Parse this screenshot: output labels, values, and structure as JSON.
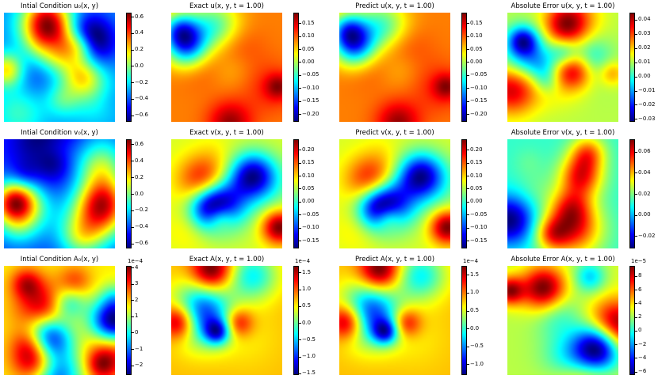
{
  "chart_data": [
    {
      "type": "heatmap",
      "title": "Intial Condition $u_0(x,y)$",
      "colormap": "jet",
      "seed": 1,
      "blobs": 16,
      "ticks": [
        "0.6",
        "0.4",
        "0.2",
        "0.0",
        "−0.2",
        "−0.4",
        "−0.6"
      ],
      "tick_values": [
        0.6,
        0.4,
        0.2,
        0.0,
        -0.2,
        -0.4,
        -0.6
      ],
      "range": [
        -0.68,
        0.65
      ],
      "offset": ""
    },
    {
      "type": "heatmap",
      "title": "Exact $u(x,y,t=1.00)$",
      "colormap": "jet",
      "seed": 2,
      "blobs": 9,
      "ticks": [
        "0.15",
        "0.10",
        "0.05",
        "0.00",
        "−0.05",
        "−0.10",
        "−0.15",
        "−0.20"
      ],
      "tick_values": [
        0.15,
        0.1,
        0.05,
        0.0,
        -0.05,
        -0.1,
        -0.15,
        -0.2
      ],
      "range": [
        -0.23,
        0.19
      ],
      "offset": ""
    },
    {
      "type": "heatmap",
      "title": "Predict $u(x,y,t=1.00)$",
      "colormap": "jet",
      "seed": 2,
      "blobs": 9,
      "ticks": [
        "0.15",
        "0.10",
        "0.05",
        "0.00",
        "−0.05",
        "−0.10",
        "−0.15",
        "−0.20"
      ],
      "tick_values": [
        0.15,
        0.1,
        0.05,
        0.0,
        -0.05,
        -0.1,
        -0.15,
        -0.2
      ],
      "range": [
        -0.23,
        0.19
      ],
      "offset": ""
    },
    {
      "type": "heatmap",
      "title": "Absolute Error $u(x,y,t=1.00)$",
      "colormap": "jet",
      "seed": 4,
      "blobs": 14,
      "ticks": [
        "0.04",
        "0.03",
        "0.02",
        "0.01",
        "0.00",
        "−0.01",
        "−0.02",
        "−0.03"
      ],
      "tick_values": [
        0.04,
        0.03,
        0.02,
        0.01,
        0.0,
        -0.01,
        -0.02,
        -0.03
      ],
      "range": [
        -0.032,
        0.045
      ],
      "offset": ""
    },
    {
      "type": "heatmap",
      "title": "Intial Condition $v_0(x,y)$",
      "colormap": "jet",
      "seed": 5,
      "blobs": 16,
      "ticks": [
        "0.6",
        "0.4",
        "0.2",
        "0.0",
        "−0.2",
        "−0.4",
        "−0.6"
      ],
      "tick_values": [
        0.6,
        0.4,
        0.2,
        0.0,
        -0.2,
        -0.4,
        -0.6
      ],
      "range": [
        -0.66,
        0.66
      ],
      "offset": ""
    },
    {
      "type": "heatmap",
      "title": "Exact $v(x,y,t=1.00)$",
      "colormap": "jet",
      "seed": 6,
      "blobs": 9,
      "ticks": [
        "0.20",
        "0.15",
        "0.10",
        "0.05",
        "0.00",
        "−0.05",
        "−0.10",
        "−0.15"
      ],
      "tick_values": [
        0.2,
        0.15,
        0.1,
        0.05,
        0.0,
        -0.05,
        -0.1,
        -0.15
      ],
      "range": [
        -0.18,
        0.24
      ],
      "offset": ""
    },
    {
      "type": "heatmap",
      "title": "Predict $v(x,y,t=1.00)$",
      "colormap": "jet",
      "seed": 6,
      "blobs": 9,
      "ticks": [
        "0.20",
        "0.15",
        "0.10",
        "0.05",
        "0.00",
        "−0.05",
        "−0.10",
        "−0.15"
      ],
      "tick_values": [
        0.2,
        0.15,
        0.1,
        0.05,
        0.0,
        -0.05,
        -0.1,
        -0.15
      ],
      "range": [
        -0.18,
        0.24
      ],
      "offset": ""
    },
    {
      "type": "heatmap",
      "title": "Absolute Error $v(x,y,t=1.00)$",
      "colormap": "jet",
      "seed": 8,
      "blobs": 10,
      "ticks": [
        "0.06",
        "0.04",
        "0.02",
        "0.00",
        "−0.02"
      ],
      "tick_values": [
        0.06,
        0.04,
        0.02,
        0.0,
        -0.02
      ],
      "range": [
        -0.032,
        0.072
      ],
      "offset": ""
    },
    {
      "type": "heatmap",
      "title": "Intial Condition $A_0(x,y)$",
      "colormap": "jet",
      "seed": 9,
      "blobs": 12,
      "ticks": [
        "4",
        "3",
        "2",
        "1",
        "0",
        "−1",
        "−2"
      ],
      "tick_values": [
        4,
        3,
        2,
        1,
        0,
        -1,
        -2
      ],
      "range": [
        -2.6,
        4.1
      ],
      "offset": "1e−4"
    },
    {
      "type": "heatmap",
      "title": "Exact $A(x,y,t=1.00)$",
      "colormap": "jet",
      "seed": 10,
      "blobs": 7,
      "ticks": [
        "1.5",
        "1.0",
        "0.5",
        "0.0",
        "−0.5",
        "−1.0",
        "−1.5"
      ],
      "tick_values": [
        1.5,
        1.0,
        0.5,
        0.0,
        -0.5,
        -1.0,
        -1.5
      ],
      "range": [
        -1.55,
        1.7
      ],
      "offset": "1e−4"
    },
    {
      "type": "heatmap",
      "title": "Predict $A(x,y,t=1.00)$",
      "colormap": "jet",
      "seed": 10,
      "blobs": 7,
      "ticks": [
        "1.5",
        "1.0",
        "0.5",
        "0.0",
        "−0.5",
        "−1.0"
      ],
      "tick_values": [
        1.5,
        1.0,
        0.5,
        0.0,
        -0.5,
        -1.0
      ],
      "range": [
        -1.3,
        1.75
      ],
      "offset": "1e−4"
    },
    {
      "type": "heatmap",
      "title": "Absolute Error $A(x,y,t=1.00)$",
      "colormap": "jet",
      "seed": 12,
      "blobs": 10,
      "ticks": [
        "8",
        "6",
        "4",
        "2",
        "0",
        "−2",
        "−4",
        "−6"
      ],
      "tick_values": [
        8,
        6,
        4,
        2,
        0,
        -2,
        -4,
        -6
      ],
      "range": [
        -6.5,
        9.5
      ],
      "offset": "1e−5"
    }
  ],
  "titles_display": [
    "Intial Condition u₀(x, y)",
    "Exact u(x, y, t = 1.00)",
    "Predict u(x, y, t = 1.00)",
    "Absolute Error u(x, y, t = 1.00)",
    "Intial Condition v₀(x, y)",
    "Exact v(x, y, t = 1.00)",
    "Predict v(x, y, t = 1.00)",
    "Absolute Error v(x, y, t = 1.00)",
    "Intial Condition A₀(x, y)",
    "Exact A(x, y, t = 1.00)",
    "Predict A(x, y, t = 1.00)",
    "Absolute Error A(x, y, t = 1.00)"
  ]
}
